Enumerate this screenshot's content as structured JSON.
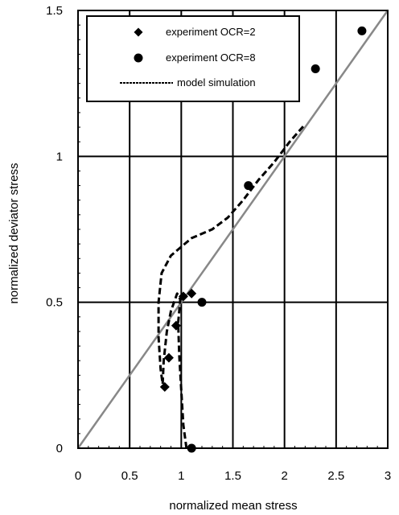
{
  "chart_data": {
    "type": "scatter",
    "xlabel": "normalized mean stress",
    "ylabel": "normalized deviator stress",
    "xlim": [
      0,
      3
    ],
    "ylim": [
      0,
      1.5
    ],
    "x_ticks": [
      "0",
      "0.5",
      "1",
      "1.5",
      "2",
      "2.5",
      "3"
    ],
    "y_ticks": [
      "0",
      "0.5",
      "1",
      "1.5"
    ],
    "grid": true,
    "legend_position": "top-left",
    "series": [
      {
        "name": "experiment OCR=2",
        "marker": "diamond",
        "color": "#000000",
        "points": [
          [
            0.84,
            0.21
          ],
          [
            0.88,
            0.31
          ],
          [
            0.95,
            0.42
          ],
          [
            1.02,
            0.52
          ],
          [
            1.1,
            0.53
          ]
        ]
      },
      {
        "name": "experiment OCR=8",
        "marker": "circle",
        "color": "#000000",
        "points": [
          [
            1.1,
            0.0
          ],
          [
            1.2,
            0.5
          ],
          [
            1.65,
            0.9
          ],
          [
            2.3,
            1.3
          ],
          [
            2.75,
            1.43
          ]
        ]
      },
      {
        "name": "model simulation",
        "marker": "dashed-line",
        "color": "#000000",
        "points": [
          [
            1.05,
            0.0
          ],
          [
            1.02,
            0.08
          ],
          [
            1.0,
            0.2
          ],
          [
            0.98,
            0.32
          ],
          [
            0.97,
            0.43
          ],
          [
            0.99,
            0.51
          ],
          [
            0.96,
            0.53
          ],
          [
            0.9,
            0.47
          ],
          [
            0.86,
            0.4
          ],
          [
            0.83,
            0.3
          ],
          [
            0.82,
            0.22
          ],
          [
            0.8,
            0.27
          ],
          [
            0.78,
            0.38
          ],
          [
            0.78,
            0.5
          ],
          [
            0.81,
            0.6
          ],
          [
            0.9,
            0.66
          ],
          [
            1.1,
            0.72
          ],
          [
            1.3,
            0.75
          ],
          [
            1.45,
            0.79
          ],
          [
            1.6,
            0.85
          ],
          [
            1.75,
            0.92
          ],
          [
            1.9,
            0.98
          ],
          [
            2.05,
            1.05
          ],
          [
            2.2,
            1.11
          ]
        ]
      }
    ],
    "reference_line": {
      "color": "#888888",
      "points": [
        [
          0,
          0
        ],
        [
          3,
          1.5
        ]
      ]
    }
  }
}
